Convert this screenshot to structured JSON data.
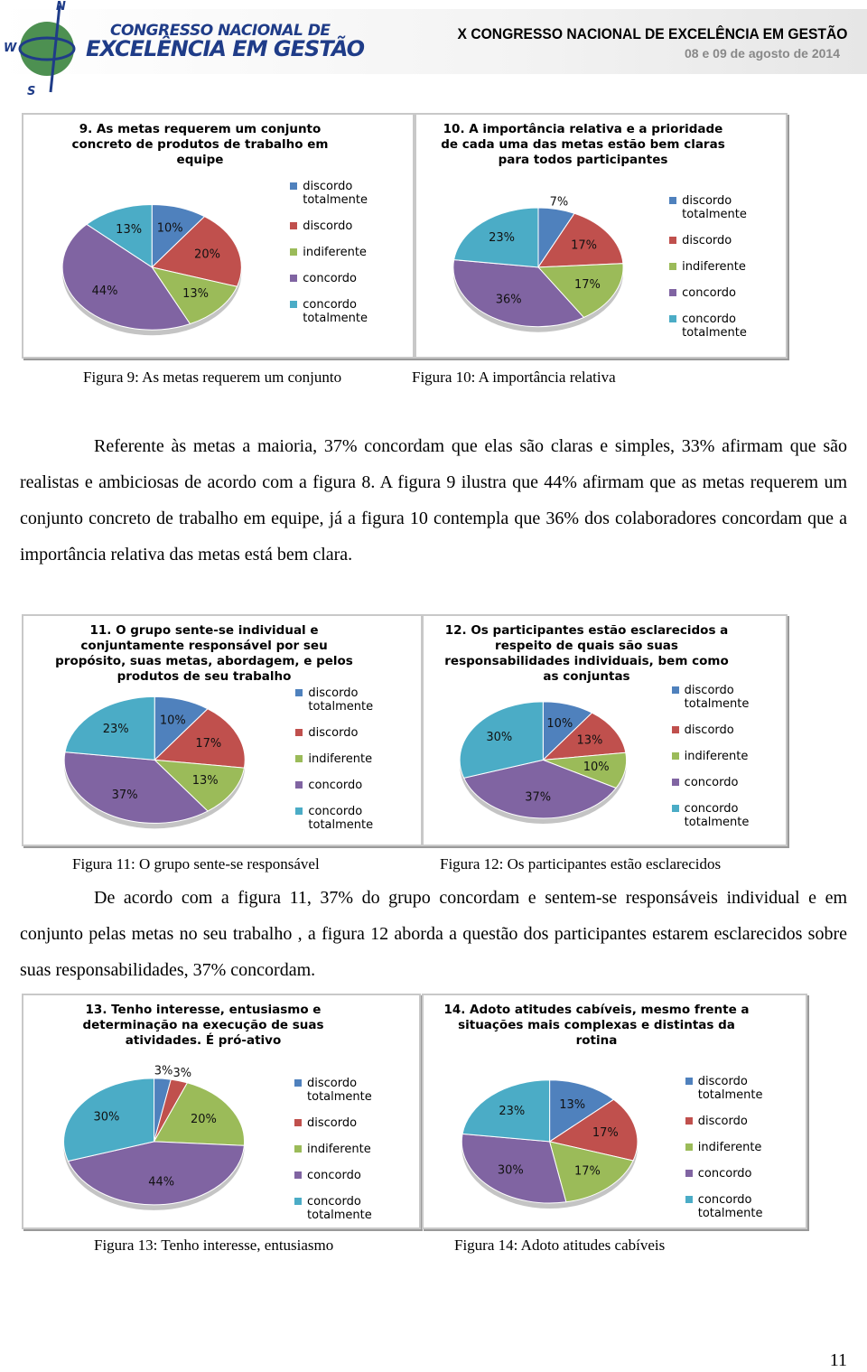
{
  "header": {
    "compass": [
      "N",
      "W",
      "S"
    ],
    "logo_line1": "CONGRESSO NACIONAL DE",
    "logo_line2": "EXCELÊNCIA EM GESTÃO",
    "title": "X CONGRESSO NACIONAL DE EXCELÊNCIA EM GESTÃO",
    "date": "08 e 09 de agosto de 2014"
  },
  "chart_data": [
    {
      "type": "pie",
      "title": "9. As metas requerem um conjunto concreto de produtos de trabalho em equipe",
      "categories": [
        "discordo totalmente",
        "discordo",
        "indiferente",
        "concordo",
        "concordo totalmente"
      ],
      "values": [
        10,
        20,
        13,
        44,
        13
      ],
      "value_labels": [
        "10%",
        "20%",
        "13%",
        "44%",
        "13%"
      ],
      "colors": [
        "#4f81bd",
        "#c0504d",
        "#9bbb59",
        "#8064a2",
        "#4bacc6"
      ],
      "legend": "right"
    },
    {
      "type": "pie",
      "title": "10. A importância relativa e a prioridade de cada uma das metas estão bem claras para todos participantes",
      "categories": [
        "discordo totalmente",
        "discordo",
        "indiferente",
        "concordo",
        "concordo totalmente"
      ],
      "values": [
        7,
        17,
        17,
        36,
        23
      ],
      "value_labels": [
        "7%",
        "17%",
        "17%",
        "36%",
        "23%"
      ],
      "colors": [
        "#4f81bd",
        "#c0504d",
        "#9bbb59",
        "#8064a2",
        "#4bacc6"
      ],
      "legend": "right"
    },
    {
      "type": "pie",
      "title": "11. O grupo sente-se individual e conjuntamente responsável por seu propósito, suas metas, abordagem, e pelos produtos de seu trabalho",
      "categories": [
        "discordo totalmente",
        "discordo",
        "indiferente",
        "concordo",
        "concordo totalmente"
      ],
      "values": [
        10,
        17,
        13,
        37,
        23
      ],
      "value_labels": [
        "10%",
        "17%",
        "13%",
        "37%",
        "23%"
      ],
      "colors": [
        "#4f81bd",
        "#c0504d",
        "#9bbb59",
        "#8064a2",
        "#4bacc6"
      ],
      "legend": "right"
    },
    {
      "type": "pie",
      "title": "12. Os participantes estão esclarecidos a respeito de quais são suas responsabilidades individuais, bem como as conjuntas",
      "categories": [
        "discordo totalmente",
        "discordo",
        "indiferente",
        "concordo",
        "concordo totalmente"
      ],
      "values": [
        10,
        13,
        10,
        37,
        30
      ],
      "value_labels": [
        "10%",
        "13%",
        "10%",
        "37%",
        "30%"
      ],
      "colors": [
        "#4f81bd",
        "#c0504d",
        "#9bbb59",
        "#8064a2",
        "#4bacc6"
      ],
      "legend": "right"
    },
    {
      "type": "pie",
      "title": "13. Tenho interesse, entusiasmo e determinação na execução de suas atividades. É pró-ativo",
      "categories": [
        "discordo totalmente",
        "discordo",
        "indiferente",
        "concordo",
        "concordo totalmente"
      ],
      "values": [
        3,
        3,
        20,
        44,
        30
      ],
      "value_labels": [
        "3%",
        "3%",
        "20%",
        "44%",
        "30%"
      ],
      "colors": [
        "#4f81bd",
        "#c0504d",
        "#9bbb59",
        "#8064a2",
        "#4bacc6"
      ],
      "legend": "right"
    },
    {
      "type": "pie",
      "title": "14. Adoto atitudes cabíveis, mesmo frente a situações mais complexas e distintas da rotina",
      "categories": [
        "discordo totalmente",
        "discordo",
        "indiferente",
        "concordo",
        "concordo totalmente"
      ],
      "values": [
        13,
        17,
        17,
        30,
        23
      ],
      "value_labels": [
        "13%",
        "17%",
        "17%",
        "30%",
        "23%"
      ],
      "colors": [
        "#4f81bd",
        "#c0504d",
        "#9bbb59",
        "#8064a2",
        "#4bacc6"
      ],
      "legend": "right"
    }
  ],
  "captions": [
    "Figura 9: As metas requerem um conjunto",
    "Figura 10: A importância relativa",
    "Figura 11: O grupo sente-se responsável",
    "Figura 12: Os participantes estão esclarecidos",
    "Figura 13: Tenho interesse, entusiasmo",
    "Figura 14: Adoto atitudes cabíveis"
  ],
  "paragraphs": [
    "Referente às metas a maioria, 37% concordam que elas são claras e simples, 33% afirmam que são realistas e ambiciosas de acordo com a figura 8. A figura 9 ilustra que 44% afirmam que as metas requerem um conjunto concreto de trabalho em equipe, já a figura 10 contempla que 36% dos colaboradores concordam que a importância relativa das metas está bem clara.",
    "De acordo com a figura 11, 37% do grupo concordam e sentem-se responsáveis individual e em conjunto pelas metas no seu trabalho , a figura 12 aborda a questão dos participantes estarem esclarecidos sobre suas responsabilidades, 37% concordam."
  ],
  "page_number": "11"
}
